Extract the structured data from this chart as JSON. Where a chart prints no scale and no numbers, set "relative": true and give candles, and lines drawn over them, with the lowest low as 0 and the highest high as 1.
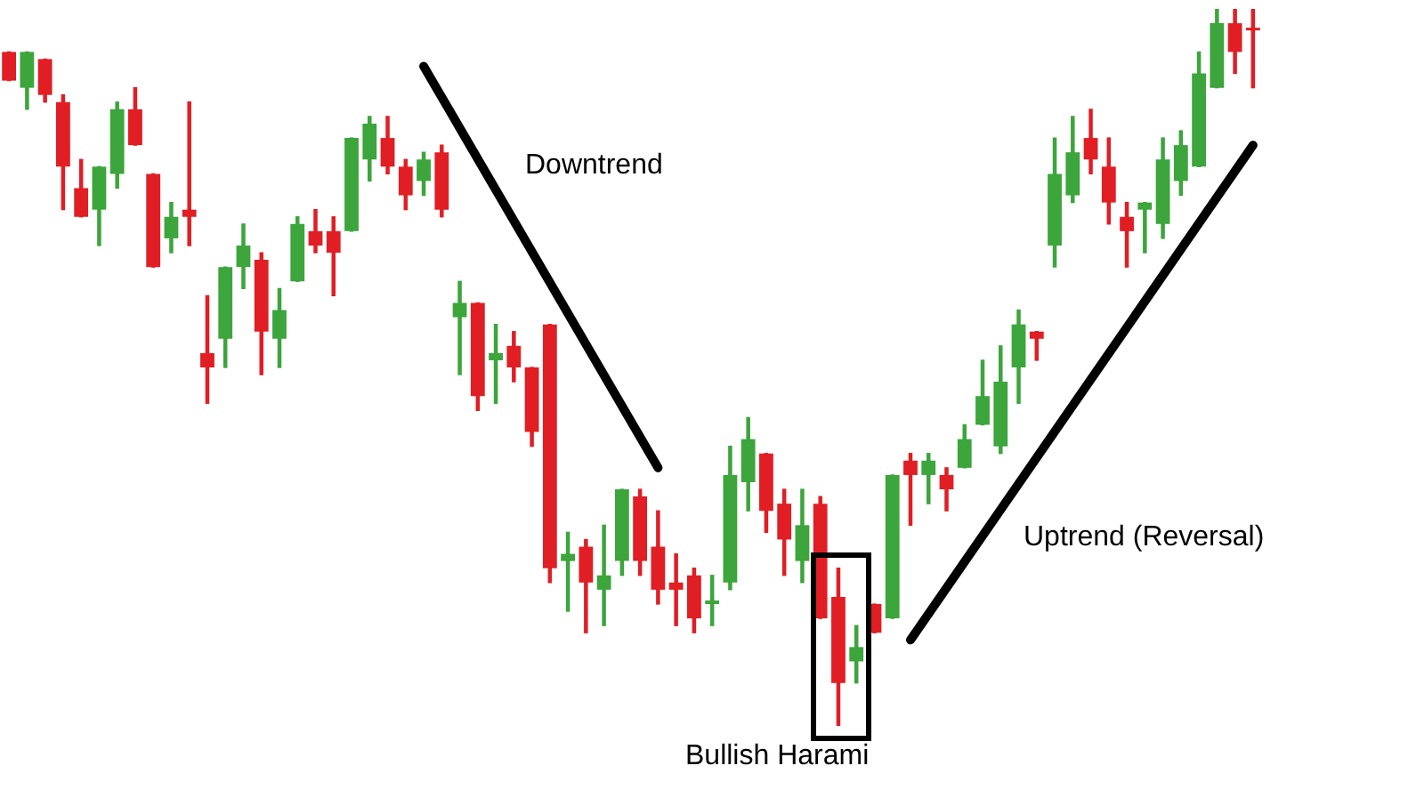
{
  "chart_data": {
    "type": "candlestick",
    "relative": true,
    "legend": false,
    "series": [
      {
        "type": "line",
        "color": "#000000",
        "values": [
          null,
          null,
          null,
          null,
          null,
          null,
          null,
          null,
          null,
          null,
          null,
          null,
          null,
          null,
          null,
          null,
          null,
          null,
          null,
          null,
          null,
          null,
          null,
          0.92,
          null,
          null,
          null,
          null,
          null,
          null,
          null,
          null,
          null,
          null,
          null,
          null,
          0.36,
          null,
          null,
          null,
          null,
          null,
          null,
          null,
          null,
          null,
          null,
          null,
          null,
          null,
          null,
          null,
          null,
          null,
          null,
          null,
          null,
          null,
          null,
          null,
          null,
          null,
          null,
          null,
          null,
          null,
          null,
          null,
          null,
          null
        ]
      },
      {
        "type": "line",
        "color": "#000000",
        "values": [
          null,
          null,
          null,
          null,
          null,
          null,
          null,
          null,
          null,
          null,
          null,
          null,
          null,
          null,
          null,
          null,
          null,
          null,
          null,
          null,
          null,
          null,
          null,
          null,
          null,
          null,
          null,
          null,
          null,
          null,
          null,
          null,
          null,
          null,
          null,
          null,
          null,
          null,
          null,
          null,
          null,
          null,
          null,
          null,
          null,
          null,
          null,
          null,
          null,
          null,
          0.12,
          null,
          null,
          null,
          null,
          null,
          null,
          null,
          null,
          null,
          null,
          null,
          null,
          null,
          null,
          null,
          null,
          null,
          null,
          0.81
        ]
      }
    ],
    "categories": [
      null,
      null,
      null,
      null,
      null,
      null,
      null,
      null,
      null,
      null,
      null,
      null,
      null,
      null,
      null,
      null,
      null,
      null,
      null,
      null,
      null,
      null,
      null,
      null,
      null,
      null,
      null,
      null,
      null,
      null,
      null,
      null,
      null,
      null,
      null,
      null,
      null,
      null,
      null,
      null,
      null,
      null,
      null,
      null,
      null,
      null,
      null,
      null,
      null,
      null,
      null,
      null,
      null,
      null,
      null,
      null,
      null,
      null,
      null,
      null,
      null,
      null,
      null,
      null,
      null,
      null,
      null,
      null,
      null,
      null
    ],
    "ohlc": [
      [
        0.94,
        0.94,
        0.9,
        0.9
      ],
      [
        0.89,
        0.94,
        0.86,
        0.94
      ],
      [
        0.93,
        0.93,
        0.87,
        0.88
      ],
      [
        0.87,
        0.88,
        0.72,
        0.78
      ],
      [
        0.75,
        0.79,
        0.71,
        0.71
      ],
      [
        0.72,
        0.78,
        0.67,
        0.78
      ],
      [
        0.77,
        0.87,
        0.75,
        0.86
      ],
      [
        0.86,
        0.89,
        0.81,
        0.81
      ],
      [
        0.77,
        0.77,
        0.64,
        0.64
      ],
      [
        0.68,
        0.73,
        0.66,
        0.71
      ],
      [
        0.72,
        0.87,
        0.67,
        0.71
      ],
      [
        0.52,
        0.6,
        0.45,
        0.5
      ],
      [
        0.54,
        0.64,
        0.5,
        0.64
      ],
      [
        0.64,
        0.7,
        0.61,
        0.67
      ],
      [
        0.65,
        0.66,
        0.49,
        0.55
      ],
      [
        0.54,
        0.61,
        0.5,
        0.58
      ],
      [
        0.62,
        0.71,
        0.62,
        0.7
      ],
      [
        0.69,
        0.72,
        0.66,
        0.67
      ],
      [
        0.69,
        0.71,
        0.6,
        0.66
      ],
      [
        0.69,
        0.82,
        0.69,
        0.82
      ],
      [
        0.79,
        0.85,
        0.76,
        0.84
      ],
      [
        0.82,
        0.85,
        0.77,
        0.78
      ],
      [
        0.78,
        0.79,
        0.72,
        0.74
      ],
      [
        0.76,
        0.8,
        0.74,
        0.79
      ],
      [
        0.8,
        0.81,
        0.71,
        0.72
      ],
      [
        0.57,
        0.62,
        0.49,
        0.59
      ],
      [
        0.59,
        0.59,
        0.44,
        0.46
      ],
      [
        0.51,
        0.56,
        0.45,
        0.52
      ],
      [
        0.53,
        0.55,
        0.48,
        0.5
      ],
      [
        0.5,
        0.5,
        0.39,
        0.41
      ],
      [
        0.56,
        0.56,
        0.2,
        0.22
      ],
      [
        0.23,
        0.27,
        0.16,
        0.24
      ],
      [
        0.25,
        0.26,
        0.13,
        0.2
      ],
      [
        0.19,
        0.28,
        0.14,
        0.21
      ],
      [
        0.23,
        0.33,
        0.21,
        0.33
      ],
      [
        0.32,
        0.33,
        0.21,
        0.23
      ],
      [
        0.25,
        0.3,
        0.17,
        0.19
      ],
      [
        0.2,
        0.24,
        0.14,
        0.19
      ],
      [
        0.21,
        0.22,
        0.13,
        0.15
      ],
      [
        0.17,
        0.21,
        0.14,
        0.175
      ],
      [
        0.2,
        0.39,
        0.19,
        0.35
      ],
      [
        0.34,
        0.43,
        0.3,
        0.4
      ],
      [
        0.38,
        0.38,
        0.27,
        0.3
      ],
      [
        0.31,
        0.33,
        0.21,
        0.26
      ],
      [
        0.23,
        0.33,
        0.2,
        0.28
      ],
      [
        0.31,
        0.32,
        0.15,
        0.15
      ],
      [
        0.18,
        0.22,
        0,
        0.06
      ],
      [
        0.09,
        0.14,
        0.06,
        0.11
      ],
      [
        0.17,
        0.17,
        0.13,
        0.13
      ],
      [
        0.15,
        0.35,
        0.15,
        0.35
      ],
      [
        0.37,
        0.38,
        0.28,
        0.35
      ],
      [
        0.35,
        0.38,
        0.31,
        0.37
      ],
      [
        0.35,
        0.36,
        0.3,
        0.33
      ],
      [
        0.36,
        0.42,
        0.36,
        0.4
      ],
      [
        0.42,
        0.51,
        0.42,
        0.46
      ],
      [
        0.39,
        0.53,
        0.38,
        0.48
      ],
      [
        0.5,
        0.58,
        0.45,
        0.56
      ],
      [
        0.55,
        0.55,
        0.51,
        0.54
      ],
      [
        0.67,
        0.82,
        0.64,
        0.77
      ],
      [
        0.74,
        0.85,
        0.73,
        0.8
      ],
      [
        0.82,
        0.86,
        0.77,
        0.79
      ],
      [
        0.78,
        0.82,
        0.7,
        0.73
      ],
      [
        0.71,
        0.73,
        0.64,
        0.69
      ],
      [
        0.72,
        0.73,
        0.66,
        0.73
      ],
      [
        0.7,
        0.82,
        0.68,
        0.79
      ],
      [
        0.76,
        0.83,
        0.74,
        0.81
      ],
      [
        0.78,
        0.94,
        0.78,
        0.91
      ],
      [
        0.89,
        1,
        0.89,
        0.98
      ],
      [
        0.98,
        1,
        0.91,
        0.94
      ],
      [
        0.97,
        1,
        0.89,
        0.97
      ]
    ],
    "colors": [
      "#e01e24",
      "#3ca53c",
      "#e01e24",
      "#e01e24",
      "#e01e24",
      "#3ca53c",
      "#3ca53c",
      "#e01e24",
      "#e01e24",
      "#3ca53c",
      "#e01e24",
      "#e01e24",
      "#3ca53c",
      "#3ca53c",
      "#e01e24",
      "#3ca53c",
      "#3ca53c",
      "#e01e24",
      "#e01e24",
      "#3ca53c",
      "#3ca53c",
      "#e01e24",
      "#e01e24",
      "#3ca53c",
      "#e01e24",
      "#3ca53c",
      "#e01e24",
      "#3ca53c",
      "#e01e24",
      "#e01e24",
      "#e01e24",
      "#3ca53c",
      "#e01e24",
      "#3ca53c",
      "#3ca53c",
      "#e01e24",
      "#e01e24",
      "#e01e24",
      "#e01e24",
      "#3ca53c",
      "#3ca53c",
      "#3ca53c",
      "#e01e24",
      "#e01e24",
      "#3ca53c",
      "#e01e24",
      "#e01e24",
      "#3ca53c",
      "#e01e24",
      "#3ca53c",
      "#e01e24",
      "#3ca53c",
      "#e01e24",
      "#3ca53c",
      "#3ca53c",
      "#3ca53c",
      "#3ca53c",
      "#e01e24",
      "#3ca53c",
      "#3ca53c",
      "#e01e24",
      "#e01e24",
      "#e01e24",
      "#3ca53c",
      "#3ca53c",
      "#3ca53c",
      "#3ca53c",
      "#3ca53c",
      "#e01e24",
      "#e01e24"
    ],
    "annotations": [
      "Downtrend",
      "Uptrend (Reversal)",
      "Bullish Harami"
    ]
  }
}
